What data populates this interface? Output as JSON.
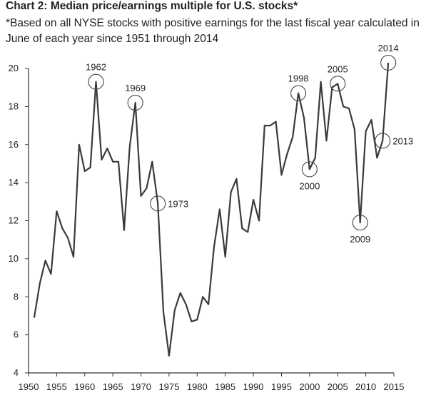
{
  "chart_data": {
    "type": "line",
    "title": "Chart 2: Median price/earnings multiple for U.S. stocks*",
    "subtitle": "*Based on all NYSE stocks with positive earnings for the last fiscal year calculated in June of each year since 1951 through 2014",
    "xlabel": "",
    "ylabel": "",
    "xlim": [
      1950,
      2015
    ],
    "ylim": [
      4,
      20
    ],
    "x_ticks": [
      1950,
      1955,
      1960,
      1965,
      1970,
      1975,
      1980,
      1985,
      1990,
      1995,
      2000,
      2005,
      2010,
      2015
    ],
    "y_ticks": [
      4,
      6,
      8,
      10,
      12,
      14,
      16,
      18,
      20
    ],
    "grid": false,
    "line_color": "#3a3a3a",
    "series": [
      {
        "x": [
          1951,
          1952,
          1953,
          1954,
          1955,
          1956,
          1957,
          1958,
          1959,
          1960,
          1961,
          1962,
          1963,
          1964,
          1965,
          1966,
          1967,
          1968,
          1969,
          1970,
          1971,
          1972,
          1973,
          1974,
          1975,
          1976,
          1977,
          1978,
          1979,
          1980,
          1981,
          1982,
          1983,
          1984,
          1985,
          1986,
          1987,
          1988,
          1989,
          1990,
          1991,
          1992,
          1993,
          1994,
          1995,
          1996,
          1997,
          1998,
          1999,
          2000,
          2001,
          2002,
          2003,
          2004,
          2005,
          2006,
          2007,
          2008,
          2009,
          2010,
          2011,
          2012,
          2013,
          2014
        ],
        "y": [
          6.9,
          8.7,
          9.9,
          9.2,
          12.5,
          11.6,
          11.1,
          10.1,
          16.0,
          14.6,
          14.8,
          19.3,
          15.2,
          15.8,
          15.1,
          15.1,
          11.5,
          15.9,
          18.2,
          13.3,
          13.7,
          15.1,
          12.9,
          7.2,
          4.9,
          7.3,
          8.2,
          7.6,
          6.7,
          6.8,
          8.0,
          7.6,
          10.6,
          12.6,
          10.1,
          13.5,
          14.2,
          11.6,
          11.4,
          13.1,
          12.0,
          17.0,
          17.0,
          17.2,
          14.4,
          15.5,
          16.4,
          18.7,
          17.4,
          14.7,
          15.3,
          19.3,
          16.2,
          19.0,
          19.2,
          18.0,
          17.9,
          16.8,
          11.9,
          16.7,
          17.3,
          15.3,
          16.2,
          20.3
        ]
      }
    ],
    "annotations": [
      {
        "label": "1962",
        "x": 1962,
        "y": 19.3,
        "label_pos": "above"
      },
      {
        "label": "1969",
        "x": 1969,
        "y": 18.2,
        "label_pos": "above"
      },
      {
        "label": "1973",
        "x": 1973,
        "y": 12.9,
        "label_pos": "right"
      },
      {
        "label": "1998",
        "x": 1998,
        "y": 18.7,
        "label_pos": "above"
      },
      {
        "label": "2000",
        "x": 2000,
        "y": 14.7,
        "label_pos": "below"
      },
      {
        "label": "2005",
        "x": 2005,
        "y": 19.2,
        "label_pos": "above"
      },
      {
        "label": "2009",
        "x": 2009,
        "y": 11.9,
        "label_pos": "below"
      },
      {
        "label": "2013",
        "x": 2013,
        "y": 16.2,
        "label_pos": "right"
      },
      {
        "label": "2014",
        "x": 2014,
        "y": 20.3,
        "label_pos": "above"
      }
    ]
  }
}
